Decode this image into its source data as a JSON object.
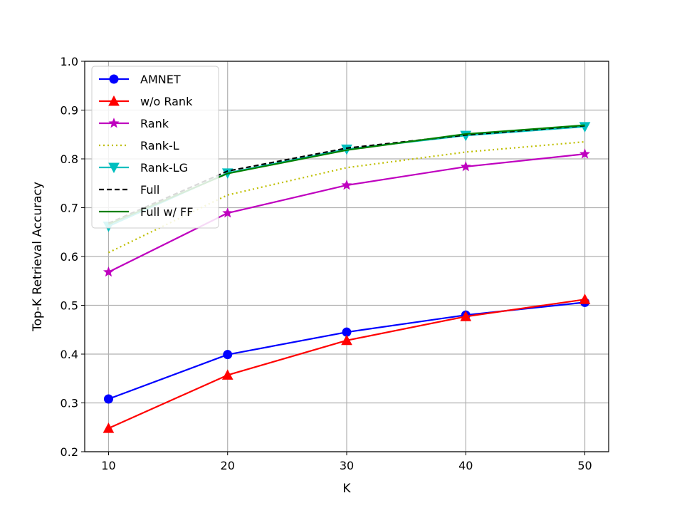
{
  "chart_data": {
    "type": "line",
    "xlabel": "K",
    "ylabel": "Top-K Retrieval Accuracy",
    "x": [
      10,
      20,
      30,
      40,
      50
    ],
    "xlim": [
      8,
      52
    ],
    "ylim": [
      0.2,
      1.0
    ],
    "x_ticks": [
      "10",
      "20",
      "30",
      "40",
      "50"
    ],
    "y_ticks": [
      "0.2",
      "0.3",
      "0.4",
      "0.5",
      "0.6",
      "0.7",
      "0.8",
      "0.9",
      "1.0"
    ],
    "grid": true,
    "legend_position": "top-left",
    "series": [
      {
        "name": "AMNET",
        "values": [
          0.308,
          0.399,
          0.445,
          0.48,
          0.506
        ],
        "color": "#0000ff",
        "linestyle": "solid",
        "marker": "circle"
      },
      {
        "name": "w/o Rank",
        "values": [
          0.248,
          0.357,
          0.428,
          0.477,
          0.512
        ],
        "color": "#ff0000",
        "linestyle": "solid",
        "marker": "triangle-up"
      },
      {
        "name": "Rank",
        "values": [
          0.568,
          0.689,
          0.746,
          0.784,
          0.81
        ],
        "color": "#bf00bf",
        "linestyle": "solid",
        "marker": "star"
      },
      {
        "name": "Rank-L",
        "values": [
          0.608,
          0.726,
          0.782,
          0.814,
          0.835
        ],
        "color": "#bfbf00",
        "linestyle": "dotted",
        "marker": "none"
      },
      {
        "name": "Rank-LG",
        "values": [
          0.662,
          0.771,
          0.82,
          0.848,
          0.866
        ],
        "color": "#00bfbf",
        "linestyle": "solid",
        "marker": "triangle-down"
      },
      {
        "name": "Full",
        "values": [
          0.668,
          0.775,
          0.822,
          0.849,
          0.868
        ],
        "color": "#000000",
        "linestyle": "dashed",
        "marker": "none"
      },
      {
        "name": "Full w/ FF",
        "values": [
          0.666,
          0.77,
          0.818,
          0.851,
          0.869
        ],
        "color": "#008000",
        "linestyle": "solid",
        "marker": "none"
      }
    ]
  }
}
